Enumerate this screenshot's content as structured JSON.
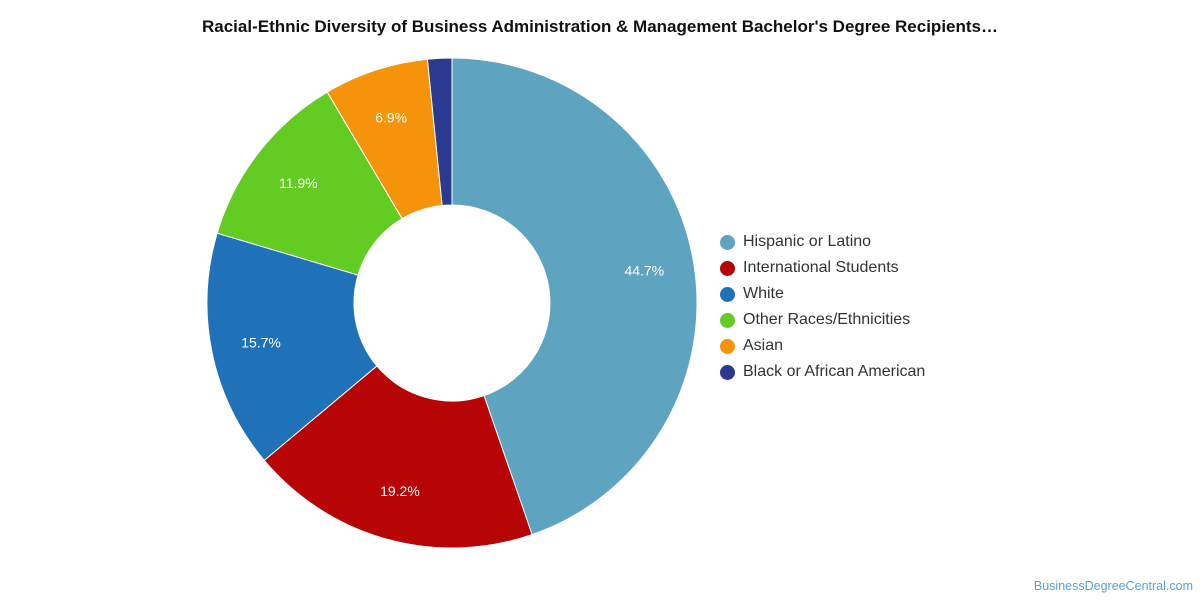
{
  "chart_data": {
    "type": "pie",
    "title": "Racial-Ethnic Diversity of Business Administration & Management Bachelor's Degree Recipients…",
    "donut": true,
    "legend_position": "right",
    "series": [
      {
        "name": "Hispanic or Latino",
        "value": 44.7,
        "label": "44.7%",
        "color": "#5ea3bf"
      },
      {
        "name": "International Students",
        "value": 19.2,
        "label": "19.2%",
        "color": "#b70404"
      },
      {
        "name": "White",
        "value": 15.7,
        "label": "15.7%",
        "color": "#1f72b8"
      },
      {
        "name": "Other Races/Ethnicities",
        "value": 11.9,
        "label": "11.9%",
        "color": "#62cc23"
      },
      {
        "name": "Asian",
        "value": 6.9,
        "label": "6.9%",
        "color": "#f5940a"
      },
      {
        "name": "Black or African American",
        "value": 1.6,
        "label": "",
        "color": "#2b3990"
      }
    ]
  },
  "footer": {
    "watermark": "BusinessDegreeCentral.com"
  }
}
